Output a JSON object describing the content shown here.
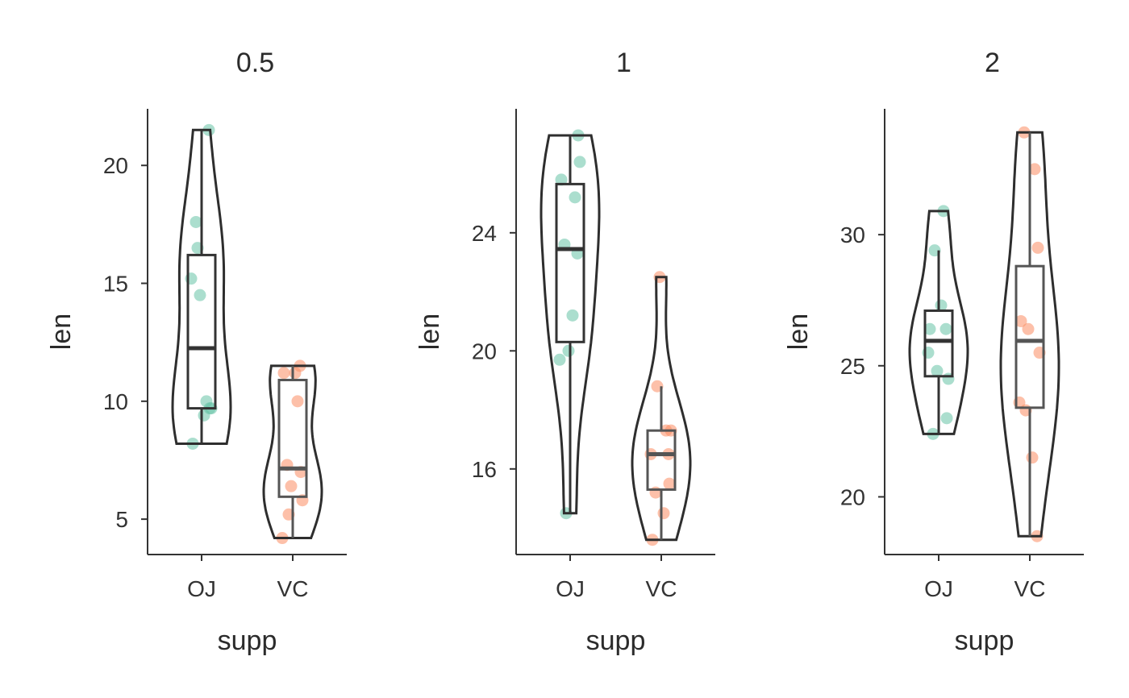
{
  "colors": {
    "OJ": "#66c2a5",
    "VC": "#fc8d62",
    "outline": "#2e2e2e",
    "box_oj": "#333333",
    "box_vc": "#555555"
  },
  "chart_data": [
    {
      "type": "violin",
      "title": "0.5",
      "xlabel": "supp",
      "ylabel": "len",
      "ylim": [
        3.5,
        22.4
      ],
      "yticks": [
        5,
        10,
        15,
        20
      ],
      "categories": [
        "OJ",
        "VC"
      ],
      "groups": [
        {
          "name": "OJ",
          "points": [
            15.2,
            21.5,
            17.6,
            9.7,
            14.5,
            10.0,
            8.2,
            9.4,
            16.5,
            9.7
          ],
          "box": {
            "min": 8.2,
            "q1": 9.7,
            "median": 12.25,
            "q3": 16.2,
            "max": 21.5
          },
          "violin_range": [
            8.2,
            21.5
          ]
        },
        {
          "name": "VC",
          "points": [
            4.2,
            11.5,
            7.3,
            5.8,
            6.4,
            10.0,
            11.2,
            11.2,
            5.2,
            7.0
          ],
          "box": {
            "min": 4.2,
            "q1": 5.95,
            "median": 7.15,
            "q3": 10.9,
            "max": 11.5
          },
          "violin_range": [
            4.2,
            11.5
          ]
        }
      ]
    },
    {
      "type": "violin",
      "title": "1",
      "xlabel": "supp",
      "ylabel": "len",
      "ylim": [
        13.1,
        28.2
      ],
      "yticks": [
        16,
        20,
        24
      ],
      "categories": [
        "OJ",
        "VC"
      ],
      "groups": [
        {
          "name": "OJ",
          "points": [
            19.7,
            23.3,
            23.6,
            26.4,
            20.0,
            25.2,
            25.8,
            21.2,
            14.5,
            27.3
          ],
          "box": {
            "min": 14.5,
            "q1": 20.3,
            "median": 23.45,
            "q3": 25.65,
            "max": 27.3
          },
          "violin_range": [
            14.5,
            27.3
          ]
        },
        {
          "name": "VC",
          "points": [
            16.5,
            16.5,
            15.2,
            17.3,
            22.5,
            17.3,
            13.6,
            14.5,
            18.8,
            15.5
          ],
          "box": {
            "min": 13.6,
            "q1": 15.3,
            "median": 16.5,
            "q3": 17.3,
            "max": 18.8
          },
          "violin_range": [
            13.6,
            22.5
          ]
        }
      ]
    },
    {
      "type": "violin",
      "title": "2",
      "xlabel": "supp",
      "ylabel": "len",
      "ylim": [
        17.8,
        34.8
      ],
      "yticks": [
        20,
        25,
        30
      ],
      "categories": [
        "OJ",
        "VC"
      ],
      "groups": [
        {
          "name": "OJ",
          "points": [
            25.5,
            26.4,
            22.4,
            24.5,
            24.8,
            30.9,
            26.4,
            27.3,
            29.4,
            23.0
          ],
          "box": {
            "min": 22.4,
            "q1": 24.6,
            "median": 25.95,
            "q3": 27.1,
            "max": 29.4
          },
          "violin_range": [
            22.4,
            30.9
          ]
        },
        {
          "name": "VC",
          "points": [
            23.6,
            18.5,
            33.9,
            25.5,
            26.4,
            32.5,
            26.7,
            21.5,
            23.3,
            29.5
          ],
          "box": {
            "min": 18.5,
            "q1": 23.4,
            "median": 25.95,
            "q3": 28.8,
            "max": 33.9
          },
          "violin_range": [
            18.5,
            33.9
          ]
        }
      ]
    }
  ]
}
